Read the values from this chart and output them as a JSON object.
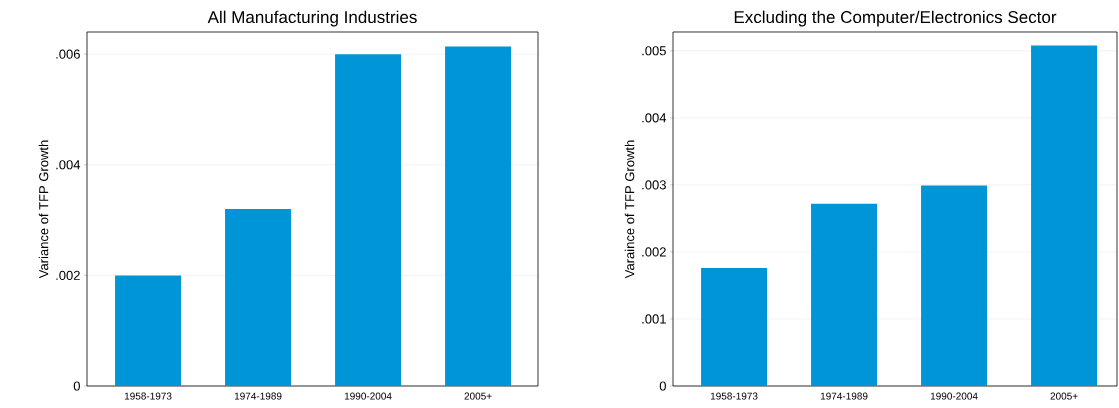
{
  "chart_data": [
    {
      "type": "bar",
      "title": "All Manufacturing Industries",
      "ylabel": "Variance of TFP Growth",
      "categories": [
        "1958-1973",
        "1974-1989",
        "1990-2004",
        "2005+"
      ],
      "values": [
        0.002,
        0.0032,
        0.006,
        0.00614
      ],
      "color": "#0095d6",
      "ylim": [
        0,
        0.0064
      ],
      "yticks": [
        0,
        {
          "value": 0.002,
          "label": ".002"
        },
        {
          "value": 0.004,
          "label": ".004"
        },
        {
          "value": 0.006,
          "label": ".006"
        }
      ],
      "grid": "y"
    },
    {
      "type": "bar",
      "title": "Excluding the Computer/Electronics Sector",
      "ylabel": "Varaince of TFP Growth",
      "categories": [
        "1958-1973",
        "1974-1989",
        "1990-2004",
        "2005+"
      ],
      "values": [
        0.00176,
        0.00272,
        0.00299,
        0.00508
      ],
      "color": "#0095d6",
      "ylim": [
        0,
        0.00528
      ],
      "yticks": [
        0,
        {
          "value": 0.001,
          "label": ".001"
        },
        {
          "value": 0.002,
          "label": ".002"
        },
        {
          "value": 0.003,
          "label": ".003"
        },
        {
          "value": 0.004,
          "label": ".004"
        },
        {
          "value": 0.005,
          "label": ".005"
        }
      ],
      "grid": "y"
    }
  ]
}
